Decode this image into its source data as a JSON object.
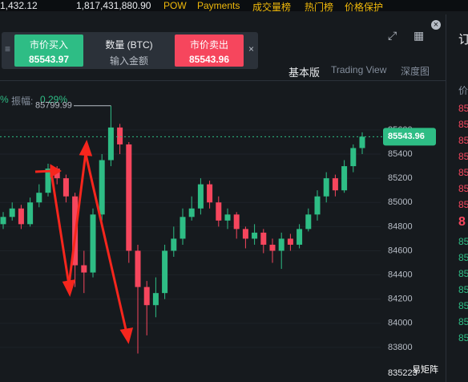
{
  "top_bar": {
    "items": [
      "1,432.12",
      "1,817,431,880.90",
      "POW",
      "Payments",
      "成交量榜",
      "热门榜",
      "价格保护"
    ]
  },
  "trade_box": {
    "buy_label": "市价买入",
    "buy_price": "85543.97",
    "qty_label": "数量 (BTC)",
    "qty_placeholder": "输入金额",
    "sell_label": "市价卖出",
    "sell_price": "85543.96"
  },
  "tabs": [
    "基本版",
    "Trading View",
    "深度图"
  ],
  "stats": {
    "left": "%",
    "label": "振幅:",
    "value": "0.29%"
  },
  "chart": {
    "high_label": "85799.99",
    "last_price": "85543.96",
    "bottom_label": "835223",
    "watermark": "易矩阵",
    "ylim": [
      83514,
      86011
    ],
    "yticks": [
      85600,
      85400,
      85200,
      85000,
      84800,
      84600,
      84400,
      84200,
      84000,
      83800
    ],
    "open": [
      84820,
      84880,
      84950,
      84820,
      85000,
      85080,
      85280,
      85200,
      85050,
      84480,
      84420,
      84900,
      85350,
      85620,
      85480,
      84600,
      84300,
      84150,
      84250,
      84600,
      84700,
      84880,
      84950,
      85150,
      85000,
      84850,
      84900,
      84780,
      84700,
      84750,
      84650,
      84600,
      84700,
      84650,
      84780,
      84900,
      85050,
      85200,
      85100,
      85300,
      85450
    ],
    "close": [
      84880,
      84950,
      84820,
      85000,
      85080,
      85280,
      85200,
      85050,
      84480,
      84420,
      84900,
      85350,
      85620,
      85480,
      84600,
      84300,
      84150,
      84250,
      84600,
      84700,
      84880,
      84950,
      85150,
      85000,
      84850,
      84900,
      84780,
      84700,
      84750,
      84650,
      84600,
      84700,
      84650,
      84780,
      84900,
      85050,
      85200,
      85100,
      85300,
      85450,
      85544
    ],
    "high": [
      84920,
      85000,
      84980,
      85040,
      85150,
      85320,
      85300,
      85230,
      85080,
      84600,
      84950,
      85400,
      85799.99,
      85650,
      85500,
      84650,
      84350,
      84380,
      84650,
      84800,
      84950,
      85050,
      85200,
      85180,
      85050,
      84950,
      84920,
      84800,
      84820,
      84780,
      84700,
      84750,
      84740,
      84820,
      84950,
      85100,
      85250,
      85230,
      85350,
      85480,
      85580
    ],
    "low": [
      84780,
      84850,
      84780,
      84800,
      84960,
      85050,
      85150,
      85000,
      84300,
      84250,
      84380,
      84850,
      85300,
      85400,
      84500,
      83750,
      83900,
      84050,
      84200,
      84550,
      84650,
      84850,
      84900,
      84950,
      84800,
      84780,
      84700,
      84620,
      84650,
      84580,
      84500,
      84450,
      84600,
      84620,
      84760,
      84850,
      85000,
      85050,
      85080,
      85250,
      85400
    ]
  },
  "side_panel": {
    "title": "订",
    "col": "价",
    "prices": [
      "85",
      "85",
      "85",
      "85",
      "85",
      "85",
      "85",
      "8",
      "85",
      "85",
      "85",
      "85",
      "85",
      "85",
      "85"
    ]
  }
}
